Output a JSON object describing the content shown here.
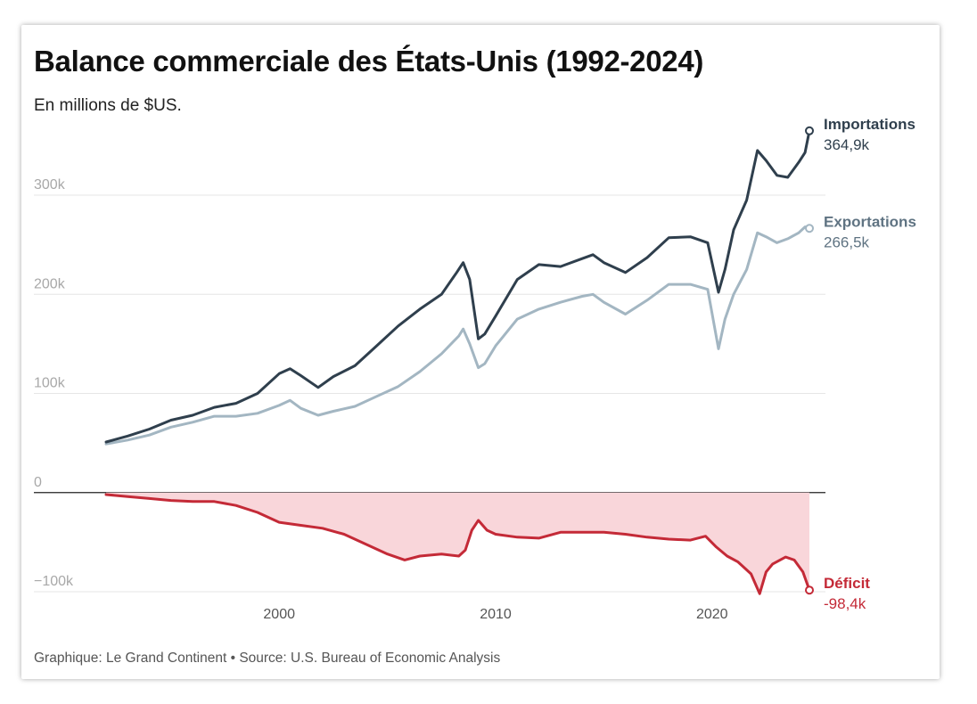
{
  "chart_data": {
    "type": "line",
    "title": "Balance commerciale des États-Unis (1992-2024)",
    "subtitle": "En millions de $US.",
    "source": "Graphique: Le Grand Continent • Source: U.S. Bureau of Economic Analysis",
    "ylim": [
      -100000,
      380000
    ],
    "xlim": [
      1992,
      2024.5
    ],
    "y_ticks": [
      {
        "value": 300000,
        "label": "300k"
      },
      {
        "value": 200000,
        "label": "200k"
      },
      {
        "value": 100000,
        "label": "100k"
      },
      {
        "value": 0,
        "label": "0"
      },
      {
        "value": -100000,
        "label": "−100k"
      }
    ],
    "x_ticks": [
      {
        "value": 2000,
        "label": "2000"
      },
      {
        "value": 2010,
        "label": "2010"
      },
      {
        "value": 2020,
        "label": "2020"
      }
    ],
    "grid": true,
    "series": [
      {
        "name": "Importations",
        "value_label": "364,9k",
        "color": "#2f3f4d",
        "points": [
          [
            1992,
            51000
          ],
          [
            1993,
            57000
          ],
          [
            1994,
            64000
          ],
          [
            1995,
            73000
          ],
          [
            1996,
            78000
          ],
          [
            1997,
            86000
          ],
          [
            1998,
            90000
          ],
          [
            1999,
            100000
          ],
          [
            2000,
            120000
          ],
          [
            2000.5,
            125000
          ],
          [
            2001,
            118000
          ],
          [
            2001.8,
            106000
          ],
          [
            2002.5,
            117000
          ],
          [
            2003.5,
            128000
          ],
          [
            2004.5,
            148000
          ],
          [
            2005.5,
            168000
          ],
          [
            2006.5,
            185000
          ],
          [
            2007.5,
            200000
          ],
          [
            2008.2,
            222000
          ],
          [
            2008.5,
            232000
          ],
          [
            2008.8,
            215000
          ],
          [
            2009.2,
            155000
          ],
          [
            2009.5,
            160000
          ],
          [
            2010,
            178000
          ],
          [
            2011,
            215000
          ],
          [
            2012,
            230000
          ],
          [
            2013,
            228000
          ],
          [
            2014,
            236000
          ],
          [
            2014.5,
            240000
          ],
          [
            2015,
            232000
          ],
          [
            2016,
            222000
          ],
          [
            2017,
            237000
          ],
          [
            2018,
            257000
          ],
          [
            2019,
            258000
          ],
          [
            2019.8,
            252000
          ],
          [
            2020.3,
            202000
          ],
          [
            2020.6,
            225000
          ],
          [
            2021,
            265000
          ],
          [
            2021.6,
            295000
          ],
          [
            2022.1,
            345000
          ],
          [
            2022.5,
            335000
          ],
          [
            2023,
            320000
          ],
          [
            2023.5,
            318000
          ],
          [
            2024,
            333000
          ],
          [
            2024.3,
            343000
          ],
          [
            2024.5,
            364900
          ]
        ]
      },
      {
        "name": "Exportations",
        "value_label": "266,5k",
        "color": "#a3b6c2",
        "points": [
          [
            1992,
            49000
          ],
          [
            1993,
            53000
          ],
          [
            1994,
            58000
          ],
          [
            1995,
            66000
          ],
          [
            1996,
            71000
          ],
          [
            1997,
            77000
          ],
          [
            1998,
            77000
          ],
          [
            1999,
            80000
          ],
          [
            2000,
            88000
          ],
          [
            2000.5,
            93000
          ],
          [
            2001,
            85000
          ],
          [
            2001.8,
            78000
          ],
          [
            2002.5,
            82000
          ],
          [
            2003.5,
            87000
          ],
          [
            2004.5,
            97000
          ],
          [
            2005.5,
            107000
          ],
          [
            2006.5,
            122000
          ],
          [
            2007.5,
            140000
          ],
          [
            2008.3,
            158000
          ],
          [
            2008.5,
            165000
          ],
          [
            2008.8,
            150000
          ],
          [
            2009.2,
            126000
          ],
          [
            2009.5,
            130000
          ],
          [
            2010,
            148000
          ],
          [
            2011,
            175000
          ],
          [
            2012,
            185000
          ],
          [
            2013,
            192000
          ],
          [
            2014,
            198000
          ],
          [
            2014.5,
            200000
          ],
          [
            2015,
            192000
          ],
          [
            2016,
            180000
          ],
          [
            2017,
            194000
          ],
          [
            2018,
            210000
          ],
          [
            2019,
            210000
          ],
          [
            2019.8,
            205000
          ],
          [
            2020.3,
            145000
          ],
          [
            2020.6,
            175000
          ],
          [
            2021,
            200000
          ],
          [
            2021.6,
            225000
          ],
          [
            2022.1,
            262000
          ],
          [
            2022.5,
            258000
          ],
          [
            2023,
            252000
          ],
          [
            2023.5,
            256000
          ],
          [
            2024,
            262000
          ],
          [
            2024.3,
            268000
          ],
          [
            2024.5,
            266500
          ]
        ]
      },
      {
        "name": "Déficit",
        "value_label": "-98,4k",
        "color": "#c42a37",
        "fill": "#f9d6da",
        "points": [
          [
            1992,
            -2000
          ],
          [
            1993,
            -4000
          ],
          [
            1994,
            -6000
          ],
          [
            1995,
            -8000
          ],
          [
            1996,
            -9000
          ],
          [
            1997,
            -9000
          ],
          [
            1998,
            -13000
          ],
          [
            1999,
            -20000
          ],
          [
            2000,
            -30000
          ],
          [
            2001,
            -33000
          ],
          [
            2002,
            -36000
          ],
          [
            2003,
            -42000
          ],
          [
            2004,
            -52000
          ],
          [
            2005,
            -62000
          ],
          [
            2005.8,
            -68000
          ],
          [
            2006.5,
            -64000
          ],
          [
            2007.5,
            -62000
          ],
          [
            2008.3,
            -64000
          ],
          [
            2008.6,
            -58000
          ],
          [
            2008.9,
            -38000
          ],
          [
            2009.2,
            -28000
          ],
          [
            2009.6,
            -38000
          ],
          [
            2010,
            -42000
          ],
          [
            2011,
            -45000
          ],
          [
            2012,
            -46000
          ],
          [
            2013,
            -40000
          ],
          [
            2014,
            -40000
          ],
          [
            2015,
            -40000
          ],
          [
            2016,
            -42000
          ],
          [
            2017,
            -45000
          ],
          [
            2018,
            -47000
          ],
          [
            2019,
            -48000
          ],
          [
            2019.7,
            -44000
          ],
          [
            2020.2,
            -55000
          ],
          [
            2020.7,
            -64000
          ],
          [
            2021.2,
            -70000
          ],
          [
            2021.8,
            -82000
          ],
          [
            2022.2,
            -102000
          ],
          [
            2022.5,
            -80000
          ],
          [
            2022.8,
            -72000
          ],
          [
            2023.4,
            -65000
          ],
          [
            2023.8,
            -68000
          ],
          [
            2024.2,
            -80000
          ],
          [
            2024.5,
            -98400
          ]
        ]
      }
    ]
  }
}
